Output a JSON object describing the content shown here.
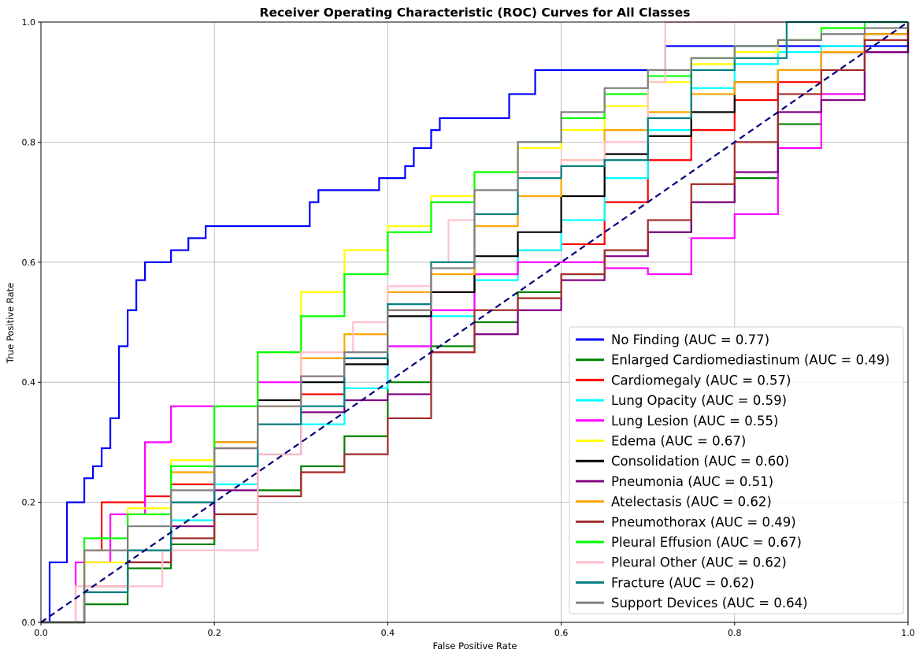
{
  "chart_data": {
    "type": "line",
    "title": "Receiver Operating Characteristic (ROC) Curves for All Classes",
    "xlabel": "False Positive Rate",
    "ylabel": "True Positive Rate",
    "xlim": [
      0.0,
      1.0
    ],
    "ylim": [
      0.0,
      1.0
    ],
    "xticks": [
      "0.0",
      "0.2",
      "0.4",
      "0.6",
      "0.8",
      "1.0"
    ],
    "yticks": [
      "0.0",
      "0.2",
      "0.4",
      "0.6",
      "0.8",
      "1.0"
    ],
    "grid": true,
    "legend_position": "lower-right",
    "diagonal": {
      "x": [
        0,
        1
      ],
      "y": [
        0,
        1
      ],
      "color": "#000080",
      "style": "dashed"
    },
    "series": [
      {
        "name": "No Finding (AUC = 0.77)",
        "color": "#0000ff",
        "x": [
          0,
          0.01,
          0.01,
          0.03,
          0.03,
          0.05,
          0.06,
          0.07,
          0.08,
          0.09,
          0.09,
          0.1,
          0.11,
          0.12,
          0.15,
          0.17,
          0.19,
          0.3,
          0.31,
          0.32,
          0.38,
          0.39,
          0.42,
          0.43,
          0.45,
          0.46,
          0.54,
          0.57,
          0.71,
          0.72,
          1.0
        ],
        "y": [
          0,
          0.1,
          0.1,
          0.2,
          0.2,
          0.24,
          0.26,
          0.29,
          0.34,
          0.42,
          0.46,
          0.52,
          0.57,
          0.6,
          0.62,
          0.64,
          0.66,
          0.66,
          0.7,
          0.72,
          0.72,
          0.74,
          0.76,
          0.79,
          0.82,
          0.84,
          0.88,
          0.92,
          0.92,
          0.96,
          0.98
        ]
      },
      {
        "name": "Enlarged Cardiomediastinum (AUC = 0.49)",
        "color": "#008000",
        "x": [
          0,
          0.05,
          0.1,
          0.15,
          0.2,
          0.25,
          0.3,
          0.35,
          0.4,
          0.45,
          0.5,
          0.55,
          0.6,
          0.65,
          0.7,
          0.75,
          0.8,
          0.85,
          0.9,
          0.95,
          1.0
        ],
        "y": [
          0,
          0.03,
          0.09,
          0.13,
          0.18,
          0.22,
          0.26,
          0.31,
          0.4,
          0.46,
          0.5,
          0.55,
          0.58,
          0.62,
          0.65,
          0.7,
          0.74,
          0.83,
          0.88,
          0.95,
          1.0
        ]
      },
      {
        "name": "Cardiomegaly (AUC = 0.57)",
        "color": "#ff0000",
        "x": [
          0,
          0.05,
          0.07,
          0.12,
          0.15,
          0.2,
          0.25,
          0.3,
          0.35,
          0.4,
          0.45,
          0.5,
          0.55,
          0.6,
          0.65,
          0.7,
          0.75,
          0.8,
          0.85,
          0.9,
          0.95,
          1.0
        ],
        "y": [
          0,
          0.12,
          0.2,
          0.21,
          0.23,
          0.29,
          0.33,
          0.38,
          0.44,
          0.52,
          0.55,
          0.58,
          0.62,
          0.63,
          0.7,
          0.77,
          0.82,
          0.87,
          0.9,
          0.95,
          0.98,
          1.0
        ]
      },
      {
        "name": "Lung Opacity (AUC = 0.59)",
        "color": "#00ffff",
        "x": [
          0,
          0.05,
          0.1,
          0.15,
          0.2,
          0.25,
          0.3,
          0.35,
          0.4,
          0.45,
          0.5,
          0.55,
          0.6,
          0.65,
          0.7,
          0.75,
          0.8,
          0.85,
          0.9,
          0.95,
          1.0
        ],
        "y": [
          0,
          0.05,
          0.1,
          0.17,
          0.23,
          0.28,
          0.33,
          0.39,
          0.46,
          0.51,
          0.57,
          0.62,
          0.67,
          0.74,
          0.82,
          0.89,
          0.93,
          0.95,
          0.96,
          0.98,
          1.0
        ]
      },
      {
        "name": "Lung Lesion (AUC = 0.55)",
        "color": "#ff00ff",
        "x": [
          0,
          0.04,
          0.08,
          0.12,
          0.15,
          0.2,
          0.25,
          0.3,
          0.35,
          0.4,
          0.45,
          0.5,
          0.55,
          0.6,
          0.65,
          0.7,
          0.75,
          0.8,
          0.85,
          0.9,
          0.95,
          1.0
        ],
        "y": [
          0,
          0.1,
          0.18,
          0.3,
          0.36,
          0.36,
          0.4,
          0.41,
          0.44,
          0.46,
          0.52,
          0.58,
          0.6,
          0.6,
          0.59,
          0.58,
          0.64,
          0.68,
          0.79,
          0.88,
          0.95,
          0.96
        ]
      },
      {
        "name": "Edema (AUC = 0.67)",
        "color": "#ffff00",
        "x": [
          0,
          0.05,
          0.1,
          0.15,
          0.2,
          0.25,
          0.3,
          0.35,
          0.4,
          0.45,
          0.5,
          0.55,
          0.6,
          0.65,
          0.7,
          0.75,
          0.8,
          0.85,
          0.9,
          0.95,
          1.0
        ],
        "y": [
          0,
          0.1,
          0.19,
          0.27,
          0.36,
          0.45,
          0.55,
          0.62,
          0.66,
          0.71,
          0.75,
          0.79,
          0.82,
          0.86,
          0.9,
          0.93,
          0.95,
          0.97,
          0.99,
          1.0,
          1.0
        ]
      },
      {
        "name": "Consolidation (AUC = 0.60)",
        "color": "#000000",
        "x": [
          0,
          0.05,
          0.1,
          0.15,
          0.2,
          0.25,
          0.3,
          0.35,
          0.4,
          0.45,
          0.5,
          0.55,
          0.6,
          0.65,
          0.7,
          0.75,
          0.8,
          0.85,
          0.9,
          0.95,
          1.0
        ],
        "y": [
          0,
          0.06,
          0.12,
          0.2,
          0.3,
          0.37,
          0.4,
          0.43,
          0.51,
          0.55,
          0.61,
          0.65,
          0.71,
          0.78,
          0.81,
          0.85,
          0.9,
          0.92,
          0.95,
          0.98,
          1.0
        ]
      },
      {
        "name": "Pneumonia (AUC = 0.51)",
        "color": "#800080",
        "x": [
          0,
          0.05,
          0.1,
          0.15,
          0.2,
          0.25,
          0.3,
          0.35,
          0.4,
          0.45,
          0.5,
          0.55,
          0.6,
          0.65,
          0.7,
          0.75,
          0.8,
          0.85,
          0.9,
          0.95,
          1.0
        ],
        "y": [
          0,
          0.05,
          0.1,
          0.16,
          0.22,
          0.28,
          0.35,
          0.37,
          0.38,
          0.45,
          0.48,
          0.52,
          0.57,
          0.61,
          0.65,
          0.7,
          0.75,
          0.85,
          0.87,
          0.95,
          1.0
        ]
      },
      {
        "name": "Atelectasis (AUC = 0.62)",
        "color": "#ffa500",
        "x": [
          0,
          0.05,
          0.1,
          0.15,
          0.2,
          0.25,
          0.3,
          0.35,
          0.4,
          0.45,
          0.5,
          0.55,
          0.6,
          0.65,
          0.7,
          0.75,
          0.8,
          0.85,
          0.9,
          0.95,
          1.0
        ],
        "y": [
          0,
          0.12,
          0.18,
          0.25,
          0.3,
          0.36,
          0.44,
          0.48,
          0.55,
          0.58,
          0.66,
          0.71,
          0.77,
          0.82,
          0.85,
          0.88,
          0.9,
          0.92,
          0.95,
          0.98,
          1.0
        ]
      },
      {
        "name": "Pneumothorax (AUC = 0.49)",
        "color": "#a52a2a",
        "x": [
          0,
          0.05,
          0.1,
          0.15,
          0.2,
          0.25,
          0.3,
          0.35,
          0.4,
          0.45,
          0.5,
          0.55,
          0.6,
          0.65,
          0.7,
          0.75,
          0.8,
          0.85,
          0.9,
          0.95,
          1.0
        ],
        "y": [
          0,
          0.06,
          0.1,
          0.14,
          0.18,
          0.21,
          0.25,
          0.28,
          0.34,
          0.45,
          0.52,
          0.54,
          0.58,
          0.62,
          0.67,
          0.73,
          0.8,
          0.88,
          0.92,
          0.97,
          1.0
        ]
      },
      {
        "name": "Pleural Effusion (AUC = 0.67)",
        "color": "#00ff00",
        "x": [
          0,
          0.05,
          0.1,
          0.15,
          0.2,
          0.25,
          0.3,
          0.35,
          0.4,
          0.45,
          0.5,
          0.55,
          0.6,
          0.65,
          0.7,
          0.75,
          0.8,
          0.85,
          0.9,
          0.95,
          1.0
        ],
        "y": [
          0,
          0.14,
          0.18,
          0.26,
          0.36,
          0.45,
          0.51,
          0.58,
          0.65,
          0.7,
          0.75,
          0.8,
          0.84,
          0.88,
          0.91,
          0.94,
          0.96,
          0.97,
          0.99,
          1.0,
          1.0
        ]
      },
      {
        "name": "Pleural Other (AUC = 0.62)",
        "color": "#ffc0cb",
        "x": [
          0,
          0.04,
          0.04,
          0.1,
          0.14,
          0.14,
          0.2,
          0.25,
          0.3,
          0.36,
          0.4,
          0.45,
          0.47,
          0.5,
          0.55,
          0.6,
          0.65,
          0.7,
          0.72,
          0.76,
          0.8,
          0.9,
          1.0
        ],
        "y": [
          0,
          0,
          0.06,
          0.06,
          0.06,
          0.12,
          0.12,
          0.28,
          0.45,
          0.5,
          0.56,
          0.6,
          0.67,
          0.72,
          0.75,
          0.77,
          0.8,
          0.9,
          1.0,
          1.0,
          1.0,
          1.0,
          1.0
        ]
      },
      {
        "name": "Fracture (AUC = 0.62)",
        "color": "#008080",
        "x": [
          0,
          0.05,
          0.1,
          0.15,
          0.2,
          0.25,
          0.3,
          0.35,
          0.4,
          0.45,
          0.5,
          0.55,
          0.6,
          0.65,
          0.7,
          0.75,
          0.8,
          0.85,
          0.86,
          0.9,
          0.95,
          1.0
        ],
        "y": [
          0,
          0.05,
          0.12,
          0.2,
          0.26,
          0.33,
          0.36,
          0.44,
          0.53,
          0.6,
          0.68,
          0.74,
          0.76,
          0.77,
          0.84,
          0.92,
          0.94,
          0.94,
          1.0,
          1.0,
          1.0,
          1.0
        ]
      },
      {
        "name": "Support Devices (AUC = 0.64)",
        "color": "#808080",
        "x": [
          0,
          0.05,
          0.1,
          0.15,
          0.2,
          0.25,
          0.3,
          0.35,
          0.4,
          0.45,
          0.5,
          0.55,
          0.6,
          0.65,
          0.7,
          0.75,
          0.8,
          0.85,
          0.9,
          0.95,
          1.0
        ],
        "y": [
          0,
          0.12,
          0.16,
          0.22,
          0.29,
          0.36,
          0.41,
          0.45,
          0.52,
          0.59,
          0.72,
          0.8,
          0.85,
          0.89,
          0.92,
          0.94,
          0.96,
          0.97,
          0.98,
          0.99,
          1.0
        ]
      }
    ]
  }
}
